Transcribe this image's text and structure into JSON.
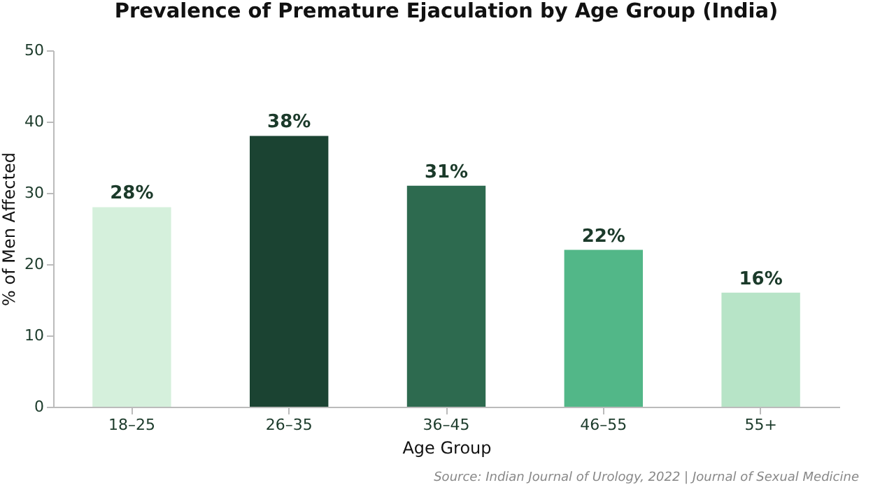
{
  "chart_data": {
    "type": "bar",
    "title": "Prevalence of Premature Ejaculation by Age Group (India)",
    "xlabel": "Age Group",
    "ylabel": "% of Men Affected",
    "categories": [
      "18–25",
      "26–35",
      "36–45",
      "46–55",
      "55+"
    ],
    "values": [
      28,
      38,
      31,
      22,
      16
    ],
    "value_labels": [
      "28%",
      "38%",
      "31%",
      "22%",
      "16%"
    ],
    "colors": [
      "#d5f0dc",
      "#1b4332",
      "#2d6a4f",
      "#52b788",
      "#b7e4c7"
    ],
    "ylim": [
      0,
      50
    ],
    "yticks": [
      0,
      10,
      20,
      30,
      40,
      50
    ],
    "grid": false,
    "annotations": [
      "Source: Indian Journal of Urology, 2022 | Journal of Sexual Medicine"
    ]
  }
}
